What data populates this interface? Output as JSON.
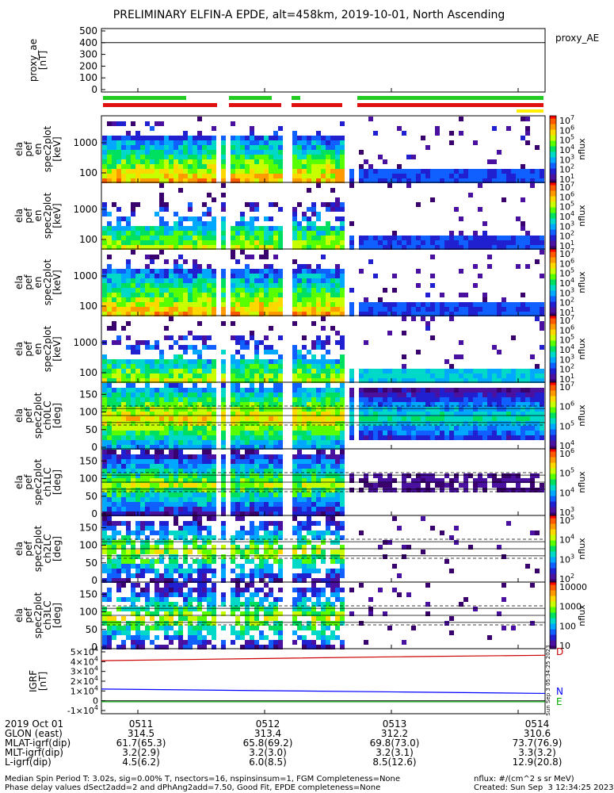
{
  "title": "PRELIMINARY ELFIN-A EPDE, alt=458km, 2019-10-01, North Ascending",
  "proxy_panel": {
    "ylabel": "proxy_ae\n[nT]",
    "yticks": [
      "500",
      "400",
      "300",
      "200",
      "100",
      "0"
    ],
    "legend": "proxy_AE",
    "value": 400
  },
  "flag_bars": {
    "green_color": "#22cc22",
    "red_color": "#e01010",
    "yellow_color": "#ffee00"
  },
  "spectra_panels": [
    {
      "ylabel": [
        "ela",
        "pef",
        "en",
        "spec2plot",
        "[keV]"
      ],
      "yticks": [
        "1000",
        "100"
      ],
      "cbar_ticks": [
        "10^7",
        "10^6",
        "10^5",
        "10^4",
        "10^3",
        "10^2",
        "10^1"
      ],
      "cbar_label": "nflux"
    },
    {
      "ylabel": [
        "ela",
        "pef",
        "en",
        "spec2plot",
        "[keV]"
      ],
      "yticks": [
        "1000",
        "100"
      ],
      "cbar_ticks": [
        "10^7",
        "10^6",
        "10^5",
        "10^4",
        "10^3",
        "10^2",
        "10^1"
      ],
      "cbar_label": "nflux"
    },
    {
      "ylabel": [
        "ela",
        "pef",
        "en",
        "spec2plot",
        "[keV]"
      ],
      "yticks": [
        "1000",
        "100"
      ],
      "cbar_ticks": [
        "10^7",
        "10^6",
        "10^5",
        "10^4",
        "10^3",
        "10^2",
        "10^1"
      ],
      "cbar_label": "nflux"
    },
    {
      "ylabel": [
        "ela",
        "pef",
        "en",
        "spec2plot",
        "[keV]"
      ],
      "yticks": [
        "1000",
        "100"
      ],
      "cbar_ticks": [
        "10^7",
        "10^6",
        "10^5",
        "10^4",
        "10^3",
        "10^2",
        "10^1"
      ],
      "cbar_label": "nflux"
    }
  ],
  "pa_panels": [
    {
      "ylabel": [
        "ela",
        "pef",
        "spec2plot",
        "ch0LC",
        "[deg]"
      ],
      "yticks": [
        "150",
        "100",
        "50",
        "0"
      ],
      "cbar_ticks": [
        "10^7",
        "10^6",
        "10^5",
        "10^4"
      ],
      "cbar_label": "nflux"
    },
    {
      "ylabel": [
        "ela",
        "pef",
        "spec2plot",
        "ch1LC",
        "[deg]"
      ],
      "yticks": [
        "150",
        "100",
        "50",
        "0"
      ],
      "cbar_ticks": [
        "10^6",
        "10^5",
        "10^4",
        "10^3"
      ],
      "cbar_label": "nflux"
    },
    {
      "ylabel": [
        "ela",
        "pef",
        "spec2plot",
        "ch2LC",
        "[deg]"
      ],
      "yticks": [
        "150",
        "100",
        "50",
        "0"
      ],
      "cbar_ticks": [
        "10^5",
        "10^4",
        "10^3",
        "10^2"
      ],
      "cbar_label": "nflux"
    },
    {
      "ylabel": [
        "ela",
        "pef",
        "spec2plot",
        "ch3LC",
        "[deg]"
      ],
      "yticks": [
        "150",
        "100",
        "50",
        "0"
      ],
      "cbar_ticks": [
        "10000",
        "1000",
        "100",
        "10"
      ],
      "cbar_label": "nflux"
    }
  ],
  "igrf_panel": {
    "ylabel": "IGRF\n[nT]",
    "yticks": [
      "5×10^4",
      "4×10^4",
      "3×10^4",
      "2×10^4",
      "1×10^4",
      "0",
      "-1×10^4"
    ],
    "legend": [
      "D",
      "N",
      "E"
    ],
    "legend_colors": [
      "#cc0000",
      "#0000ff",
      "#00aa00"
    ],
    "side_text": "Sun Sep  3 05:34:25 2023"
  },
  "chart_data": {
    "type": "heatmap",
    "x_ticks": [
      "0511",
      "0512",
      "0513",
      "0514"
    ],
    "colorbar_colors": [
      "#ff0000",
      "#ff8800",
      "#ffff00",
      "#00ff00",
      "#00ccff",
      "#0000ff",
      "#330066"
    ],
    "series": [
      {
        "name": "proxy_AE",
        "values": [
          400,
          400,
          400,
          400
        ]
      },
      {
        "name": "D",
        "values": [
          41000,
          43000,
          45000,
          46500
        ]
      },
      {
        "name": "N",
        "values": [
          12000,
          10500,
          9000,
          7500
        ]
      },
      {
        "name": "E",
        "values": [
          -1000,
          -1000,
          -1000,
          -1000
        ]
      }
    ]
  },
  "bottom_table": {
    "labels": [
      "2019 Oct 01",
      "GLON (east)",
      "MLAT-igrf(dip)",
      "MLT-igrf(dip)",
      "L-igrf(dip)"
    ],
    "columns": [
      [
        "0511",
        "314.5",
        "61.7(65.3)",
        "3.2(2.9)",
        "4.5(6.2)"
      ],
      [
        "0512",
        "313.4",
        "65.8(69.2)",
        "3.2(3.0)",
        "6.0(8.5)"
      ],
      [
        "0513",
        "312.2",
        "69.8(73.0)",
        "3.2(3.1)",
        "8.5(12.6)"
      ],
      [
        "0514",
        "310.6",
        "73.7(76.9)",
        "3.3(3.2)",
        "12.9(20.8)"
      ]
    ]
  },
  "footer": {
    "left1": "Median Spin Period T: 3.02s, sig=0.00% T, nsectors=16, nspinsinsum=1, FGM Completeness=None",
    "left2": "Phase delay values dSect2add=2 and dPhAng2add=7.50, Good Fit, EPDE completeness=None",
    "right1": "nflux: #/(cm^2 s sr MeV)",
    "right2": "Created: Sun Sep  3 12:34:25 2023"
  }
}
